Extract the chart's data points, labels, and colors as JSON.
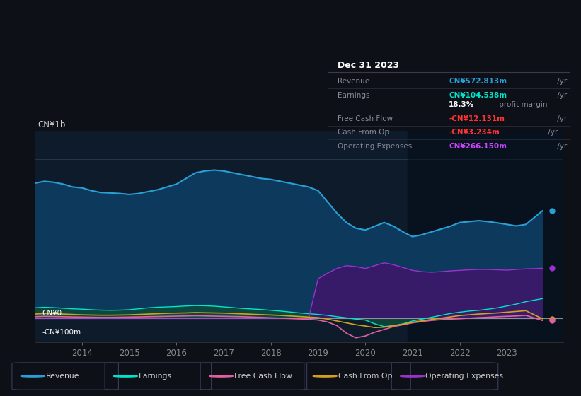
{
  "bg_color": "#0d1117",
  "plot_bg_color": "#0d1b2a",
  "chart_top_bg": "#0a1628",
  "title_box": {
    "date": "Dec 31 2023",
    "rows": [
      {
        "label": "Revenue",
        "value": "CN¥572.813m",
        "unit": " /yr",
        "value_color": "#2a9fd6"
      },
      {
        "label": "Earnings",
        "value": "CN¥104.538m",
        "unit": " /yr",
        "value_color": "#00e5cc"
      },
      {
        "label": "",
        "value": "18.3%",
        "unit": " profit margin",
        "value_color": "#ffffff"
      },
      {
        "label": "Free Cash Flow",
        "value": "-CN¥12.131m",
        "unit": " /yr",
        "value_color": "#ff3333"
      },
      {
        "label": "Cash From Op",
        "value": "-CN¥3.234m",
        "unit": " /yr",
        "value_color": "#ff3333"
      },
      {
        "label": "Operating Expenses",
        "value": "CN¥266.150m",
        "unit": " /yr",
        "value_color": "#cc44ff"
      }
    ]
  },
  "ylabel": "CN¥1b",
  "xlabel_years": [
    2014,
    2015,
    2016,
    2017,
    2018,
    2019,
    2020,
    2021,
    2022,
    2023
  ],
  "legend": [
    {
      "label": "Revenue",
      "color": "#2a9fd6"
    },
    {
      "label": "Earnings",
      "color": "#00e5cc"
    },
    {
      "label": "Free Cash Flow",
      "color": "#e060a0"
    },
    {
      "label": "Cash From Op",
      "color": "#d4a020"
    },
    {
      "label": "Operating Expenses",
      "color": "#9933cc"
    }
  ],
  "series": {
    "x": [
      2013.0,
      2013.2,
      2013.4,
      2013.6,
      2013.8,
      2014.0,
      2014.2,
      2014.4,
      2014.6,
      2014.8,
      2015.0,
      2015.2,
      2015.4,
      2015.6,
      2015.8,
      2016.0,
      2016.2,
      2016.4,
      2016.6,
      2016.8,
      2017.0,
      2017.2,
      2017.4,
      2017.6,
      2017.8,
      2018.0,
      2018.2,
      2018.4,
      2018.6,
      2018.8,
      2019.0,
      2019.2,
      2019.4,
      2019.6,
      2019.8,
      2020.0,
      2020.2,
      2020.4,
      2020.6,
      2020.8,
      2021.0,
      2021.2,
      2021.4,
      2021.6,
      2021.8,
      2022.0,
      2022.2,
      2022.4,
      2022.6,
      2022.8,
      2023.0,
      2023.2,
      2023.4,
      2023.75
    ],
    "revenue": [
      720,
      730,
      725,
      715,
      700,
      695,
      680,
      670,
      668,
      665,
      660,
      665,
      675,
      685,
      700,
      715,
      745,
      775,
      785,
      790,
      785,
      775,
      765,
      755,
      745,
      740,
      730,
      720,
      710,
      700,
      680,
      620,
      560,
      510,
      480,
      470,
      490,
      510,
      490,
      460,
      435,
      445,
      460,
      475,
      490,
      510,
      515,
      520,
      515,
      508,
      500,
      492,
      500,
      572
    ],
    "earnings": [
      55,
      58,
      56,
      53,
      50,
      48,
      45,
      43,
      42,
      43,
      45,
      50,
      55,
      58,
      60,
      62,
      65,
      67,
      66,
      64,
      60,
      56,
      52,
      49,
      46,
      42,
      38,
      33,
      28,
      24,
      20,
      15,
      8,
      2,
      -5,
      -10,
      -30,
      -45,
      -40,
      -30,
      -15,
      -5,
      5,
      15,
      25,
      32,
      38,
      42,
      48,
      55,
      65,
      75,
      88,
      104
    ],
    "free_cash_flow": [
      8,
      10,
      9,
      8,
      7,
      6,
      5,
      4,
      4,
      5,
      6,
      7,
      8,
      9,
      10,
      11,
      12,
      13,
      12,
      11,
      10,
      9,
      8,
      6,
      4,
      2,
      0,
      -2,
      -4,
      -6,
      -10,
      -20,
      -40,
      -80,
      -105,
      -95,
      -75,
      -60,
      -45,
      -35,
      -25,
      -18,
      -12,
      -8,
      -5,
      -3,
      0,
      3,
      5,
      8,
      10,
      12,
      15,
      -12
    ],
    "cash_from_op": [
      22,
      25,
      24,
      22,
      20,
      18,
      17,
      16,
      16,
      17,
      18,
      20,
      22,
      24,
      26,
      27,
      28,
      30,
      29,
      28,
      27,
      25,
      23,
      21,
      19,
      17,
      15,
      12,
      9,
      6,
      3,
      -5,
      -15,
      -25,
      -35,
      -42,
      -50,
      -48,
      -40,
      -32,
      -22,
      -14,
      -7,
      0,
      7,
      14,
      18,
      22,
      25,
      28,
      32,
      36,
      40,
      -3
    ],
    "op_expenses": [
      0,
      0,
      0,
      0,
      0,
      0,
      0,
      0,
      0,
      0,
      0,
      0,
      0,
      0,
      0,
      0,
      0,
      0,
      0,
      0,
      0,
      0,
      0,
      0,
      0,
      0,
      0,
      0,
      0,
      0,
      210,
      240,
      265,
      280,
      275,
      265,
      280,
      295,
      285,
      270,
      255,
      248,
      245,
      248,
      252,
      255,
      258,
      260,
      260,
      258,
      256,
      260,
      263,
      266
    ]
  },
  "right_markers": [
    {
      "y": 572,
      "color": "#2a9fd6"
    },
    {
      "y": 266,
      "color": "#9933cc"
    },
    {
      "y": -3,
      "color": "#d4a020"
    },
    {
      "y": -12,
      "color": "#e060a0"
    }
  ],
  "ylim": [
    -130,
    1000
  ],
  "xlim": [
    2013.0,
    2024.2
  ]
}
